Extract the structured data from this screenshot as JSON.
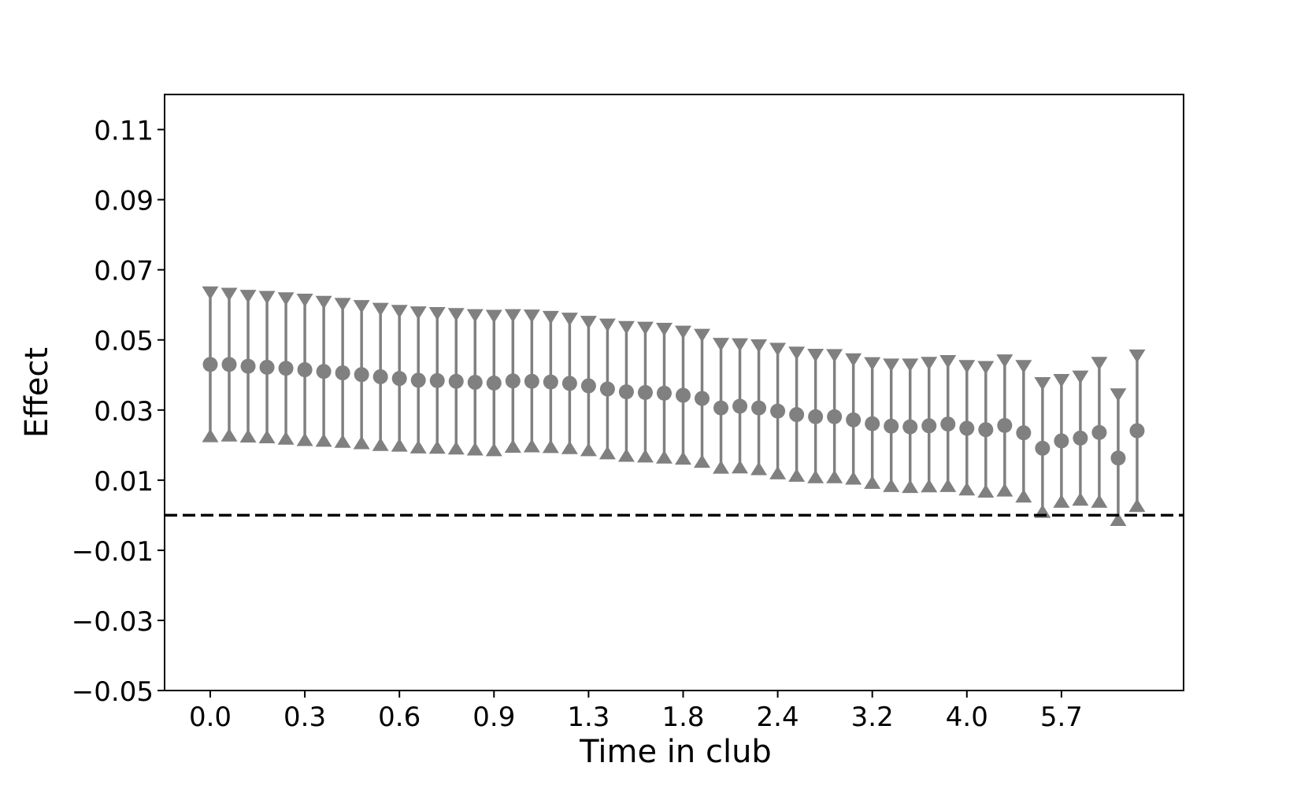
{
  "chart_data": {
    "type": "scatter",
    "title": "",
    "xlabel": "Time in club",
    "ylabel": "Effect",
    "ylim": [
      -0.05,
      0.12
    ],
    "yticks": [
      "0.11",
      "0.09",
      "0.07",
      "0.05",
      "0.03",
      "0.01",
      "−0.01",
      "−0.03",
      "−0.05"
    ],
    "ytick_values": [
      0.11,
      0.09,
      0.07,
      0.05,
      0.03,
      0.01,
      -0.01,
      -0.03,
      -0.05
    ],
    "xticks": [
      "0.0",
      "0.3",
      "0.6",
      "0.9",
      "1.3",
      "1.8",
      "2.4",
      "3.2",
      "4.0",
      "5.7"
    ],
    "xtick_positions": [
      0,
      5,
      10,
      15,
      20,
      25,
      30,
      35,
      40,
      45
    ],
    "reference_line": {
      "y": 0.0,
      "style": "dashed",
      "color": "#000000"
    },
    "marker_color": "#808080",
    "grid": false,
    "series": [
      {
        "estimate": [
          0.043,
          0.043,
          0.0425,
          0.0422,
          0.0419,
          0.0415,
          0.041,
          0.0406,
          0.0401,
          0.0395,
          0.039,
          0.0385,
          0.0384,
          0.0382,
          0.0379,
          0.0377,
          0.0383,
          0.0382,
          0.038,
          0.0376,
          0.0369,
          0.036,
          0.0352,
          0.035,
          0.0348,
          0.0342,
          0.0333,
          0.0306,
          0.0311,
          0.0306,
          0.0297,
          0.0287,
          0.0281,
          0.0281,
          0.0272,
          0.0261,
          0.0254,
          0.0252,
          0.0255,
          0.026,
          0.0248,
          0.0244,
          0.0256,
          0.0235,
          0.0191,
          0.0212,
          0.022,
          0.0236,
          0.0163,
          0.0241
        ],
        "upper": [
          0.0637,
          0.0633,
          0.0627,
          0.0624,
          0.062,
          0.0616,
          0.061,
          0.0604,
          0.0598,
          0.059,
          0.0584,
          0.058,
          0.0578,
          0.0575,
          0.0572,
          0.057,
          0.0572,
          0.0571,
          0.0567,
          0.0562,
          0.0553,
          0.0545,
          0.0538,
          0.0536,
          0.0533,
          0.0525,
          0.0516,
          0.049,
          0.0489,
          0.0486,
          0.0476,
          0.0465,
          0.0459,
          0.0458,
          0.0446,
          0.0435,
          0.0431,
          0.0431,
          0.0436,
          0.0441,
          0.0427,
          0.0424,
          0.0443,
          0.0427,
          0.0378,
          0.0387,
          0.0397,
          0.0436,
          0.0346,
          0.0457
        ],
        "lower": [
          0.0224,
          0.0226,
          0.0223,
          0.0221,
          0.0217,
          0.0213,
          0.0211,
          0.0208,
          0.0204,
          0.0199,
          0.0197,
          0.0192,
          0.0191,
          0.0189,
          0.0186,
          0.0184,
          0.0194,
          0.0195,
          0.0193,
          0.019,
          0.0184,
          0.0175,
          0.0168,
          0.0166,
          0.0163,
          0.016,
          0.0151,
          0.0134,
          0.0135,
          0.013,
          0.0118,
          0.0111,
          0.0107,
          0.0107,
          0.0103,
          0.0091,
          0.0082,
          0.0079,
          0.0081,
          0.0082,
          0.0072,
          0.0066,
          0.0069,
          0.0052,
          0.0008,
          0.0037,
          0.0043,
          0.0037,
          -0.0015,
          0.0025
        ]
      }
    ]
  }
}
